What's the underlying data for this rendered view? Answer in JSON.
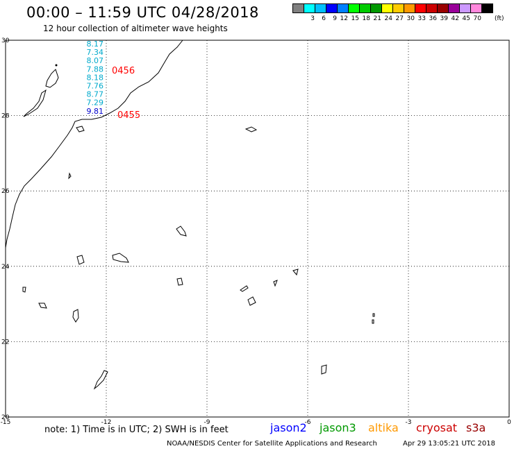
{
  "header": {
    "title": "00:00 – 11:59 UTC 04/28/2018",
    "subtitle": "12 hour collection of altimeter wave heights"
  },
  "colorbar": {
    "unit": "(ft)",
    "swatches": [
      {
        "label": "",
        "color": "#808080"
      },
      {
        "label": "3",
        "color": "#00ffff"
      },
      {
        "label": "6",
        "color": "#00bfff"
      },
      {
        "label": "9",
        "color": "#0000ff"
      },
      {
        "label": "12",
        "color": "#0080ff"
      },
      {
        "label": "15",
        "color": "#00ff00"
      },
      {
        "label": "18",
        "color": "#00cc00"
      },
      {
        "label": "21",
        "color": "#009900"
      },
      {
        "label": "24",
        "color": "#ffff00"
      },
      {
        "label": "27",
        "color": "#ffcc00"
      },
      {
        "label": "30",
        "color": "#ff9900"
      },
      {
        "label": "33",
        "color": "#ff0000"
      },
      {
        "label": "36",
        "color": "#cc0000"
      },
      {
        "label": "39",
        "color": "#990000"
      },
      {
        "label": "42",
        "color": "#990099"
      },
      {
        "label": "45",
        "color": "#cc99ff"
      },
      {
        "label": "70",
        "color": "#ff88dd"
      },
      {
        "label": "",
        "color": "#000000"
      }
    ]
  },
  "map": {
    "lon_range": [
      -15,
      0
    ],
    "lat_range": [
      20,
      30
    ],
    "lon_ticks": [
      "-15",
      "-12",
      "-9",
      "-6",
      "-3",
      "0"
    ],
    "lat_ticks": [
      "30",
      "28",
      "26",
      "24",
      "22",
      "20"
    ],
    "wave_heights": [
      {
        "text": "8.17",
        "color": "#00aacc"
      },
      {
        "text": "7.34",
        "color": "#00aacc"
      },
      {
        "text": "8.07",
        "color": "#00aacc"
      },
      {
        "text": "7.88",
        "color": "#00aacc"
      },
      {
        "text": "8.18",
        "color": "#00aacc"
      },
      {
        "text": "7.76",
        "color": "#00aacc"
      },
      {
        "text": "8.77",
        "color": "#00aacc"
      },
      {
        "text": "7.29",
        "color": "#00aacc"
      },
      {
        "text": "9.81",
        "color": "#0000cc"
      }
    ],
    "time_labels": [
      {
        "text": "0456",
        "color": "#ff0000"
      },
      {
        "text": "0455",
        "color": "#ff0000"
      }
    ]
  },
  "footer": {
    "note": "note: 1) Time is in UTC; 2) SWH is in feet",
    "satellites": [
      {
        "name": "jason2",
        "color": "#0000ff"
      },
      {
        "name": "jason3",
        "color": "#009900"
      },
      {
        "name": "altika",
        "color": "#ff9900"
      },
      {
        "name": "cryosat",
        "color": "#cc0000"
      },
      {
        "name": "s3a",
        "color": "#990000"
      }
    ],
    "credit": "NOAA/NESDIS Center for Satellite Applications and Research",
    "generated": "Apr 29 13:05:21 UTC 2018"
  }
}
